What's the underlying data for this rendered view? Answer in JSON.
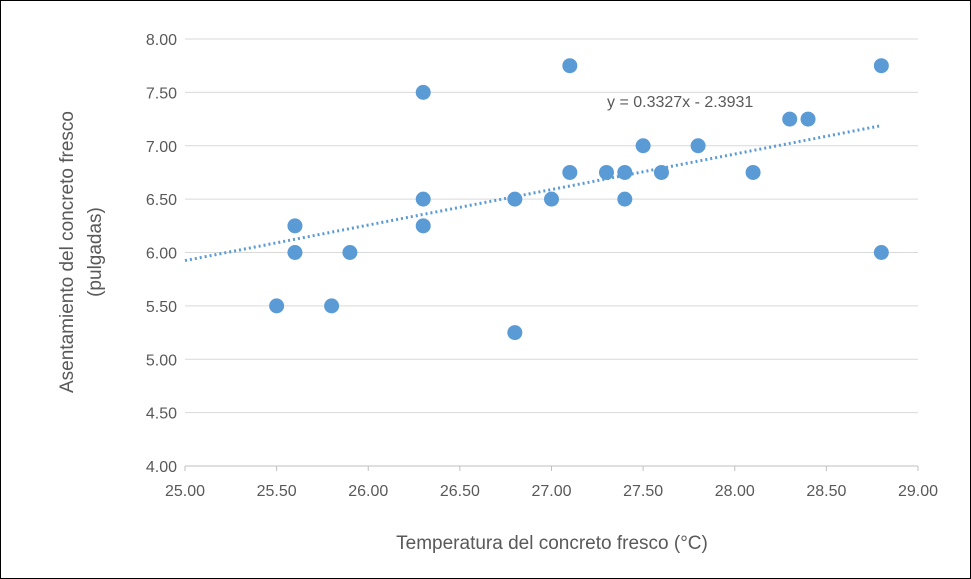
{
  "chart_data": {
    "type": "scatter",
    "title": "",
    "xlabel": "Temperatura del concreto fresco (°C)",
    "ylabel_lines": [
      "Asentamiento del concreto fresco",
      "(pulgadas)"
    ],
    "xlim": [
      25.0,
      29.0
    ],
    "ylim": [
      4.0,
      8.0
    ],
    "xticks": [
      "25.00",
      "25.50",
      "26.00",
      "26.50",
      "27.00",
      "27.50",
      "28.00",
      "28.50",
      "29.00"
    ],
    "yticks": [
      "4.00",
      "4.50",
      "5.00",
      "5.50",
      "6.00",
      "6.50",
      "7.00",
      "7.50",
      "8.00"
    ],
    "grid": "horizontal",
    "legend": "none",
    "point_color": "#5B9BD5",
    "trendline": {
      "type": "linear",
      "slope": 0.3327,
      "intercept": -2.3931,
      "label": "y = 0.3327x - 2.3931",
      "style": "dotted",
      "color": "#5B9BD5"
    },
    "points": [
      {
        "x": 25.5,
        "y": 5.5
      },
      {
        "x": 25.6,
        "y": 6.25
      },
      {
        "x": 25.6,
        "y": 6.0
      },
      {
        "x": 25.8,
        "y": 5.5
      },
      {
        "x": 25.9,
        "y": 6.0
      },
      {
        "x": 26.3,
        "y": 7.5
      },
      {
        "x": 26.3,
        "y": 6.5
      },
      {
        "x": 26.3,
        "y": 6.25
      },
      {
        "x": 26.8,
        "y": 6.5
      },
      {
        "x": 26.8,
        "y": 5.25
      },
      {
        "x": 27.0,
        "y": 6.5
      },
      {
        "x": 27.1,
        "y": 7.75
      },
      {
        "x": 27.1,
        "y": 6.75
      },
      {
        "x": 27.3,
        "y": 6.75
      },
      {
        "x": 27.4,
        "y": 6.75
      },
      {
        "x": 27.4,
        "y": 6.5
      },
      {
        "x": 27.5,
        "y": 7.0
      },
      {
        "x": 27.6,
        "y": 6.75
      },
      {
        "x": 27.8,
        "y": 7.0
      },
      {
        "x": 28.1,
        "y": 6.75
      },
      {
        "x": 28.3,
        "y": 7.25
      },
      {
        "x": 28.4,
        "y": 7.25
      },
      {
        "x": 28.8,
        "y": 7.75
      },
      {
        "x": 28.8,
        "y": 6.0
      }
    ]
  }
}
